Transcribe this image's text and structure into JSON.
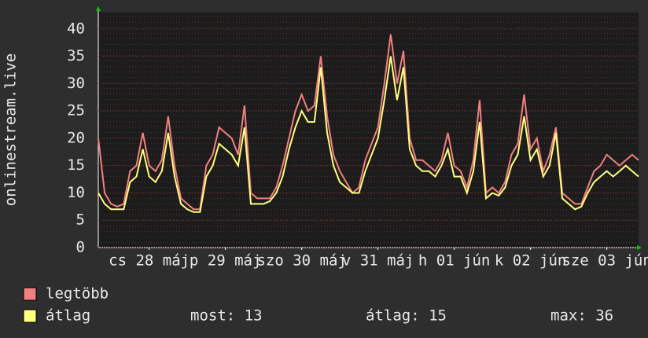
{
  "chart_data": {
    "type": "line",
    "y_label": "onlinestream.live",
    "x": [
      0,
      2,
      4,
      6,
      8,
      10,
      12,
      14,
      16,
      18,
      20,
      22,
      24,
      26,
      28,
      30,
      32,
      34,
      36,
      38,
      40,
      42,
      44,
      46,
      48,
      50,
      52,
      54,
      56,
      58,
      60,
      62,
      64,
      66,
      68,
      70,
      72,
      74,
      76,
      78,
      80,
      82,
      84,
      86,
      88,
      90,
      92,
      94,
      96,
      98,
      100,
      102,
      104,
      106,
      108,
      110,
      112,
      114,
      116,
      118,
      120,
      122,
      124,
      126,
      128,
      130,
      132,
      134,
      136,
      138,
      140,
      142,
      144,
      146,
      148,
      150,
      152,
      154,
      156,
      158,
      160,
      162,
      164,
      166,
      168,
      170
    ],
    "xlim": [
      0,
      170
    ],
    "xticks": [
      {
        "value": 16,
        "label": "cs 28 máj"
      },
      {
        "value": 40,
        "label": "p 29 máj"
      },
      {
        "value": 64,
        "label": "szo 30 máj"
      },
      {
        "value": 88,
        "label": "v 31 máj"
      },
      {
        "value": 112,
        "label": "h 01 jún"
      },
      {
        "value": 136,
        "label": "k 02 jún"
      },
      {
        "value": 160,
        "label": "sze 03 jún"
      }
    ],
    "ylim": [
      0,
      43
    ],
    "yticks": [
      0,
      5,
      10,
      15,
      20,
      25,
      30,
      35,
      40
    ],
    "grid": true,
    "series": [
      {
        "name": "legtöbb",
        "color": "#f08080",
        "values": [
          20,
          10,
          8,
          7.5,
          8,
          14,
          15,
          21,
          15,
          14,
          16,
          24,
          15,
          9,
          8,
          7,
          7,
          15,
          17,
          22,
          21,
          20,
          17,
          26,
          10,
          9,
          9,
          9,
          11,
          15,
          20,
          25,
          28,
          25,
          26,
          35,
          24,
          17,
          14,
          12,
          10,
          11,
          16,
          19,
          22,
          30,
          39,
          30,
          36,
          20,
          16,
          16,
          15,
          14,
          16,
          21,
          15,
          14,
          11,
          16,
          27,
          10,
          11,
          10,
          12,
          17,
          19,
          28,
          18,
          20,
          14,
          17,
          22,
          10,
          9,
          8,
          8,
          11,
          14,
          15,
          17,
          16,
          15,
          16,
          17,
          16
        ]
      },
      {
        "name": "átlag",
        "color": "#ffff80",
        "values": [
          10,
          8,
          7,
          7,
          7,
          12,
          13,
          18,
          13,
          12,
          14,
          21,
          13,
          8,
          7,
          6.5,
          6.5,
          13,
          15,
          19,
          18,
          17,
          15,
          22,
          8,
          8,
          8,
          8.5,
          10,
          13,
          18,
          22,
          25,
          23,
          23,
          33,
          21,
          15,
          12,
          11,
          10,
          10,
          14,
          17,
          20,
          27,
          35,
          27,
          33,
          18,
          15,
          14,
          14,
          13,
          15,
          18,
          13,
          13,
          10,
          14,
          23,
          9,
          10,
          9.5,
          11,
          15,
          17,
          24,
          16,
          18,
          13,
          15,
          21,
          9,
          8,
          7,
          7.5,
          10,
          12,
          13,
          14,
          13,
          14,
          15,
          14,
          13
        ]
      }
    ],
    "stats": [
      "most: 13",
      "átlag: 15",
      "max: 36"
    ]
  }
}
